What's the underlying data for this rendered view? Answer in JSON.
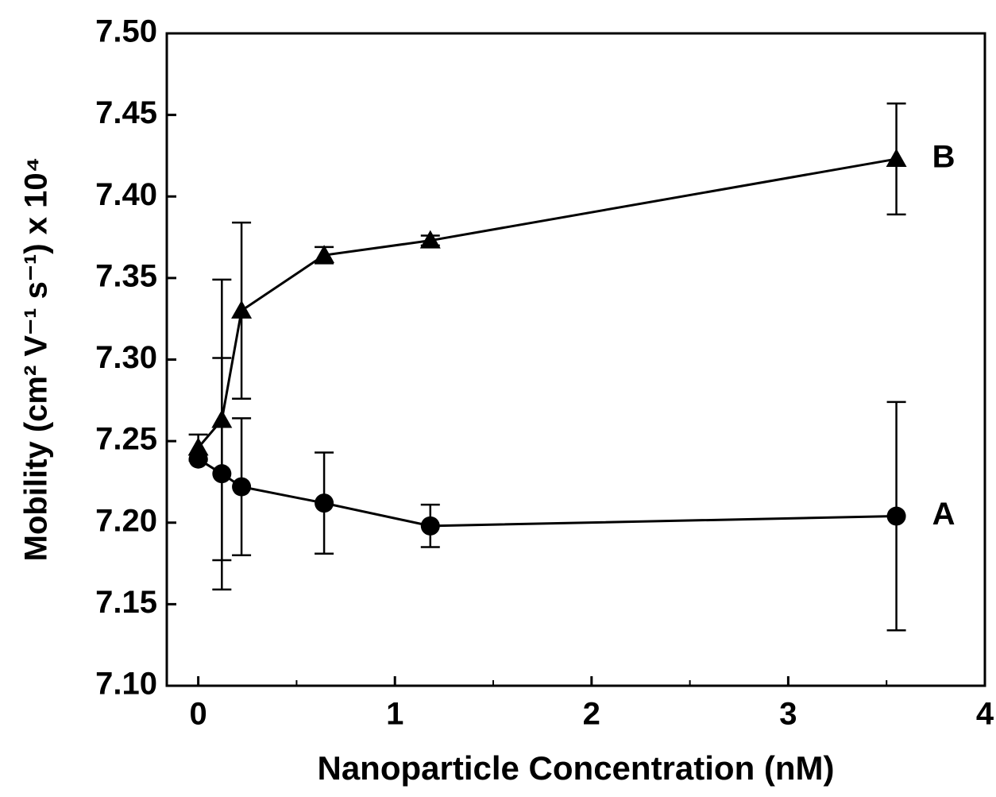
{
  "chart_data": {
    "type": "line",
    "x_label": "Nanoparticle Concentration (nM)",
    "y_label": "Mobility (cm² V⁻¹ s⁻¹) x 10⁴",
    "x": [
      0,
      0.12,
      0.22,
      0.64,
      1.18,
      3.55
    ],
    "series": [
      {
        "name": "B",
        "marker": "triangle",
        "color": "#000000",
        "values": [
          7.246,
          7.263,
          7.33,
          7.364,
          7.373,
          7.423
        ],
        "errors": [
          0.008,
          0.086,
          0.054,
          0.005,
          0.003,
          0.034
        ]
      },
      {
        "name": "A",
        "marker": "circle",
        "color": "#000000",
        "values": [
          7.239,
          7.23,
          7.222,
          7.212,
          7.198,
          7.204
        ],
        "errors": [
          0,
          0.071,
          0.042,
          0.031,
          0.013,
          0.07
        ]
      }
    ],
    "xlim": [
      -0.16,
      4
    ],
    "xticks": [
      0,
      1,
      2,
      3,
      4
    ],
    "ylim": [
      7.1,
      7.5
    ],
    "yticks": [
      {
        "value": 7.1,
        "label": "7.10"
      },
      7.15,
      {
        "value": 7.2,
        "label": "7.20"
      },
      7.25,
      {
        "value": 7.3,
        "label": "7.30"
      },
      7.35,
      {
        "value": 7.4,
        "label": "7.40"
      },
      7.45,
      {
        "value": 7.5,
        "label": "7.50"
      }
    ],
    "grid": false
  }
}
